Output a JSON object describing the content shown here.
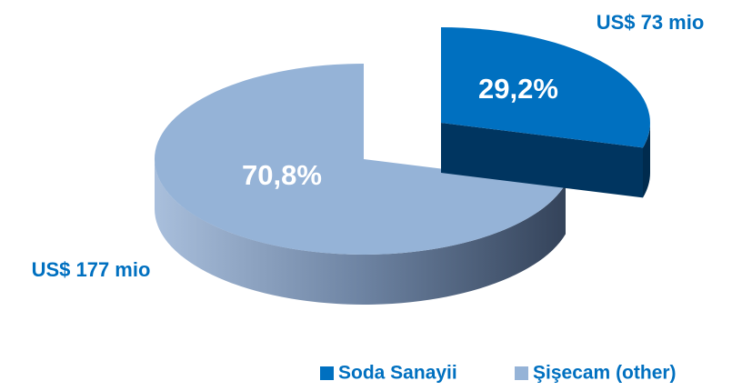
{
  "chart_data": {
    "type": "pie",
    "three_d": true,
    "categories": [
      "Soda Sanayii",
      "Şişecam (other)"
    ],
    "values": [
      29.2,
      70.8
    ],
    "value_labels": [
      "29,2%",
      "70,8%"
    ],
    "colors": [
      "#0070c0",
      "#95b3d7"
    ],
    "explode": [
      true,
      false
    ],
    "annotations": [
      "US$ 73 mio",
      "US$ 177 mio"
    ],
    "legend": "bottom-right"
  }
}
